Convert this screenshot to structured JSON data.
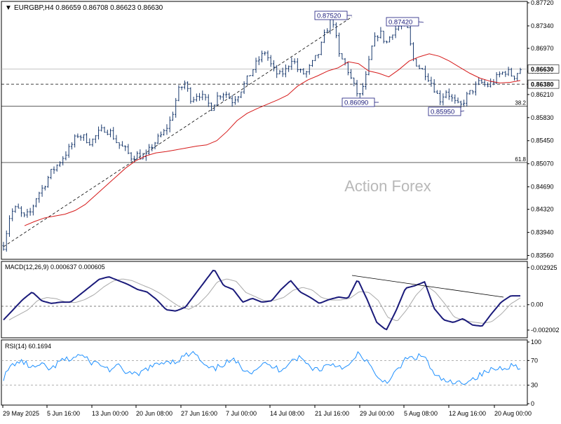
{
  "header": {
    "symbol_line": "EURGBP,H4  0.86659 0.86708 0.86623 0.86630",
    "arrow_glyph": "▼"
  },
  "watermark": "Action Forex",
  "chart_data": [
    {
      "type": "candlestick",
      "symbol": "EURGBP",
      "timeframe": "H4",
      "ohlc": {
        "open": 0.86659,
        "high": 0.86708,
        "low": 0.86623,
        "close": 0.8663
      },
      "ylim": [
        0.8352,
        0.8772
      ],
      "y_ticks": [
        "0.87720",
        "0.87340",
        "0.86970",
        "0.86590",
        "0.86210",
        "0.85830",
        "0.85450",
        "0.85070",
        "0.84690",
        "0.84320",
        "0.83940",
        "0.83560"
      ],
      "current_price": "0.86630",
      "horizontal_levels": [
        {
          "value": 0.8638,
          "label": "0.86380",
          "style": "dashed"
        },
        {
          "value": 0.8602,
          "label": "38.2",
          "style": "solid"
        },
        {
          "value": 0.8509,
          "label": "61.8",
          "style": "solid"
        }
      ],
      "annotations": [
        {
          "label": "0.87520",
          "value": 0.8752
        },
        {
          "label": "0.87420",
          "value": 0.8742
        },
        {
          "label": "0.86090",
          "value": 0.8609
        },
        {
          "label": "0.85950",
          "value": 0.8595
        }
      ],
      "price_path": [
        0.8372,
        0.8425,
        0.8435,
        0.8418,
        0.8427,
        0.8455,
        0.847,
        0.8492,
        0.8505,
        0.852,
        0.8535,
        0.8555,
        0.855,
        0.8542,
        0.8556,
        0.8565,
        0.8558,
        0.854,
        0.8532,
        0.8518,
        0.8522,
        0.8515,
        0.8535,
        0.8548,
        0.856,
        0.8582,
        0.8626,
        0.864,
        0.8612,
        0.8624,
        0.8612,
        0.86,
        0.862,
        0.8625,
        0.861,
        0.8622,
        0.864,
        0.866,
        0.8678,
        0.8692,
        0.8665,
        0.8652,
        0.866,
        0.8682,
        0.8658,
        0.8655,
        0.8672,
        0.869,
        0.8725,
        0.8748,
        0.8685,
        0.867,
        0.864,
        0.8615,
        0.865,
        0.8705,
        0.8725,
        0.8705,
        0.8725,
        0.8735,
        0.8738,
        0.868,
        0.8665,
        0.8655,
        0.8635,
        0.8612,
        0.8628,
        0.861,
        0.86,
        0.8618,
        0.863,
        0.8642,
        0.8635,
        0.8643,
        0.8655,
        0.866,
        0.865,
        0.8663
      ],
      "moving_average": [
        0.8405,
        0.8412,
        0.8418,
        0.8421,
        0.8424,
        0.843,
        0.844,
        0.8455,
        0.847,
        0.8485,
        0.85,
        0.8512,
        0.852,
        0.8525,
        0.8527,
        0.853,
        0.8533,
        0.8536,
        0.8538,
        0.8545,
        0.856,
        0.8578,
        0.859,
        0.8598,
        0.8605,
        0.8612,
        0.862,
        0.8635,
        0.8645,
        0.8652,
        0.866,
        0.8665,
        0.8675,
        0.8672,
        0.866,
        0.8656,
        0.865,
        0.8662,
        0.8676,
        0.8683,
        0.8688,
        0.8684,
        0.8676,
        0.8666,
        0.8656,
        0.8648,
        0.8643,
        0.864,
        0.8641,
        0.8644
      ]
    },
    {
      "type": "line",
      "name": "MACD(12,26,9) 0.000637 0.000605",
      "y_ticks": [
        "0.002925",
        "0.00",
        "-0.002002"
      ],
      "ylim": [
        -0.0025,
        0.0033
      ],
      "macd": [
        -0.0012,
        -0.0004,
        0.0004,
        0.001,
        0.0003,
        0.0001,
        0.0002,
        0.0002,
        0.0008,
        0.0014,
        0.002,
        0.0022,
        0.0019,
        0.0016,
        0.0012,
        0.001,
        0.0004,
        -0.0004,
        -0.0005,
        -0.0002,
        0.0008,
        0.0018,
        0.0028,
        0.0015,
        0.0012,
        0.0002,
        0.0005,
        0.0002,
        0.0003,
        0.0012,
        0.0019,
        0.001,
        0.0006,
        0.0001,
        0.0004,
        0.0006,
        0.0005,
        0.002,
        0.0004,
        -0.0014,
        -0.002,
        -0.0005,
        0.0013,
        0.0015,
        0.0018,
        -0.0003,
        -0.0012,
        -0.0014,
        -0.0011,
        -0.0016,
        -0.0017,
        -0.0007,
        0.0002,
        0.0007,
        0.0007
      ]
    },
    {
      "type": "line",
      "name": "RSI(14) 60.1694",
      "y_ticks": [
        "100",
        "70",
        "30",
        "0"
      ],
      "ylim": [
        0,
        100
      ],
      "levels": [
        70,
        30
      ],
      "rsi": [
        42,
        65,
        68,
        58,
        62,
        55,
        70,
        72,
        80,
        68,
        65,
        55,
        60,
        50,
        45,
        58,
        62,
        70,
        68,
        78,
        82,
        60,
        55,
        65,
        70,
        58,
        52,
        65,
        60,
        55,
        70,
        75,
        60,
        55,
        65,
        62,
        58,
        80,
        70,
        40,
        36,
        50,
        72,
        75,
        78,
        45,
        38,
        32,
        35,
        40,
        48,
        55,
        58,
        62,
        60
      ]
    }
  ],
  "time_labels": [
    "29 May 2025",
    "5 Jun 16:00",
    "13 Jun 00:00",
    "20 Jun 08:00",
    "27 Jun 16:00",
    "7 Jul 00:00",
    "14 Jul 08:00",
    "21 Jul 16:00",
    "29 Jul 00:00",
    "5 Aug 08:00",
    "12 Aug 16:00",
    "20 Aug 00:00"
  ],
  "colors": {
    "candles": "#1a3a6e",
    "moving_average": "#d61a1a",
    "macd_line": "#1a1a7a",
    "macd_signal": "#a9a9a9",
    "rsi_line": "#1e90ff",
    "grid": "#000000"
  }
}
